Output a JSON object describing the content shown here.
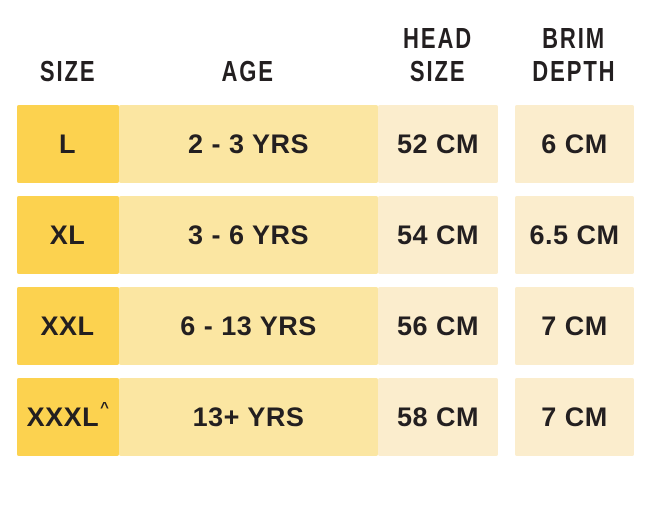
{
  "colors": {
    "col_size": "#FCD24F",
    "col_age": "#FBE6A2",
    "col_light": "#FBEDCD",
    "text": "#231F20",
    "page_bg": "#FFFFFF"
  },
  "table": {
    "headers": [
      {
        "lines": [
          "SIZE"
        ]
      },
      {
        "lines": [
          "AGE"
        ]
      },
      {
        "lines": [
          "HEAD",
          "SIZE"
        ]
      },
      {
        "lines": [
          "BRIM",
          "DEPTH"
        ]
      }
    ],
    "rows": [
      {
        "size": "L",
        "size_sup": "",
        "age": "2 - 3 YRS",
        "head_size": "52 CM",
        "brim_depth": "6 CM"
      },
      {
        "size": "XL",
        "size_sup": "",
        "age": "3 - 6 YRS",
        "head_size": "54 CM",
        "brim_depth": "6.5 CM"
      },
      {
        "size": "XXL",
        "size_sup": "",
        "age": "6 - 13 YRS",
        "head_size": "56 CM",
        "brim_depth": "7 CM"
      },
      {
        "size": "XXXL",
        "size_sup": "^",
        "age": "13+ YRS",
        "head_size": "58 CM",
        "brim_depth": "7 CM"
      }
    ]
  },
  "chart_data": {
    "type": "table",
    "columns": [
      "SIZE",
      "AGE",
      "HEAD SIZE",
      "BRIM DEPTH"
    ],
    "rows": [
      [
        "L",
        "2 - 3 YRS",
        "52 CM",
        "6 CM"
      ],
      [
        "XL",
        "3 - 6 YRS",
        "54 CM",
        "6.5 CM"
      ],
      [
        "XXL",
        "6 - 13 YRS",
        "56 CM",
        "7 CM"
      ],
      [
        "XXXL^",
        "13+ YRS",
        "58 CM",
        "7 CM"
      ]
    ]
  }
}
